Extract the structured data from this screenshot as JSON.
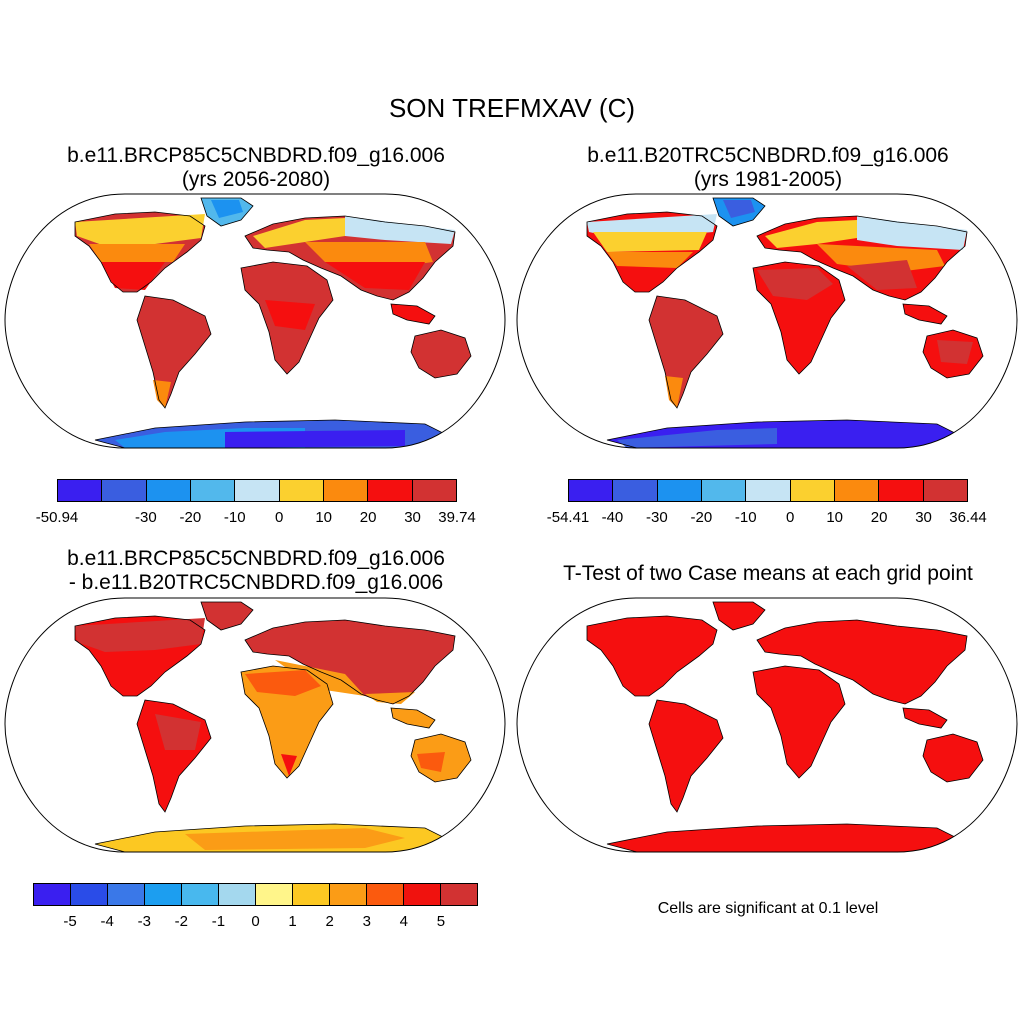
{
  "main_title": "SON TREFMXAV (C)",
  "panels": {
    "p1": {
      "title_line1": "b.e11.BRCP85C5CNBDRD.f09_g16.006",
      "title_line2": "(yrs 2056-2080)"
    },
    "p2": {
      "title_line1": "b.e11.B20TRC5CNBDRD.f09_g16.006",
      "title_line2": "(yrs 1981-2005)"
    },
    "p3": {
      "title_line1": "b.e11.BRCP85C5CNBDRD.f09_g16.006",
      "title_line2": "- b.e11.B20TRC5CNBDRD.f09_g16.006"
    },
    "p4": {
      "title_line1": "T-Test of two Case means at each grid point"
    }
  },
  "colorbars": {
    "cb1": {
      "colors": [
        "#3a1ff0",
        "#3a5ee0",
        "#1c92f0",
        "#52b8ec",
        "#c6e4f4",
        "#fbd02f",
        "#fb8a0e",
        "#f50f0f",
        "#d23232"
      ],
      "labels": [
        "-50.94",
        "-30",
        "-20",
        "-10",
        "0",
        "10",
        "20",
        "30",
        "39.74"
      ],
      "label_positions": [
        0,
        2,
        3,
        4,
        5,
        6,
        7,
        8,
        9
      ]
    },
    "cb2": {
      "colors": [
        "#3a1ff0",
        "#3a5ee0",
        "#1c92f0",
        "#52b8ec",
        "#c6e4f4",
        "#fbd02f",
        "#fb8a0e",
        "#f50f0f",
        "#d23232"
      ],
      "labels": [
        "-54.41",
        "-40",
        "-30",
        "-20",
        "-10",
        "0",
        "10",
        "20",
        "30",
        "36.44"
      ],
      "label_positions": [
        0,
        1,
        2,
        3,
        4,
        5,
        6,
        7,
        8,
        9
      ]
    },
    "cb3": {
      "colors": [
        "#3a1ff0",
        "#2a4ce8",
        "#3a78e8",
        "#1c9ef0",
        "#48b8ee",
        "#a4d8ee",
        "#fff58a",
        "#fcc822",
        "#fb9c16",
        "#fb5a0e",
        "#f0120e",
        "#d23232"
      ],
      "labels": [
        "-5",
        "-4",
        "-3",
        "-2",
        "-1",
        "0",
        "1",
        "2",
        "3",
        "4",
        "5"
      ],
      "label_positions": [
        1,
        2,
        3,
        4,
        5,
        6,
        7,
        8,
        9,
        10,
        11
      ]
    }
  },
  "significance_note": "Cells are significant at 0.1 level",
  "color_theme": {
    "hot": "#d23232",
    "red": "#f50f0f",
    "orange": "#fb8a0e",
    "yellow": "#fbd02f",
    "pale_blue": "#c6e4f4",
    "light_blue": "#52b8ec",
    "blue": "#1c92f0",
    "deep_blue": "#3a1ff0"
  }
}
